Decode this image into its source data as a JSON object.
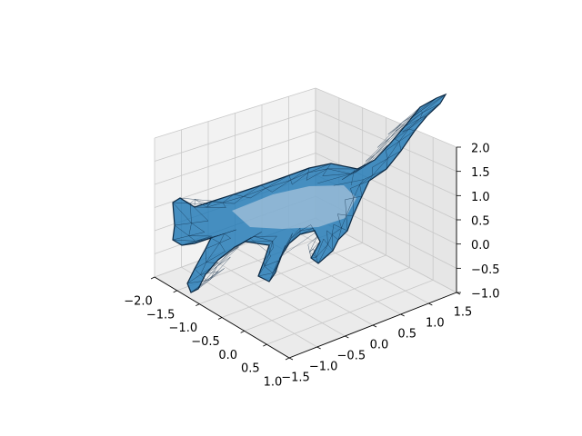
{
  "chart_data": {
    "type": "3d-mesh",
    "title": "",
    "xlabel": "",
    "ylabel": "",
    "zlabel": "",
    "grid": true,
    "subject": "cat",
    "mesh_color": "#1f77b4",
    "edge_color": "#0d2a44",
    "pane_colors": {
      "left": "#f2f2f2",
      "right": "#e6e6e6",
      "floor": "#ebebeb"
    },
    "axes": {
      "x": {
        "ticks": [
          "−2.0",
          "−1.5",
          "−1.0",
          "−0.5",
          "0.0",
          "0.5",
          "1.0"
        ],
        "lim": [
          -2.0,
          1.0
        ]
      },
      "y": {
        "ticks": [
          "−1.5",
          "−1.0",
          "−0.5",
          "0.0",
          "0.5",
          "1.0",
          "1.5"
        ],
        "lim": [
          -1.5,
          1.5
        ]
      },
      "z": {
        "ticks": [
          "−1.0",
          "−0.5",
          "0.0",
          "0.5",
          "1.0",
          "1.5",
          "2.0"
        ],
        "lim": [
          -1.0,
          2.0
        ]
      }
    }
  }
}
